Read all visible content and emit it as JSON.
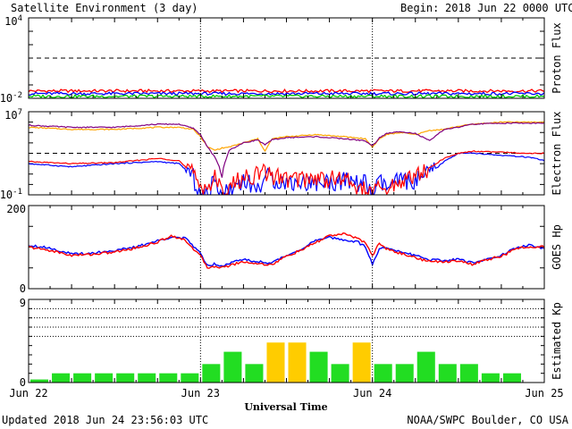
{
  "header": {
    "title": "Satellite Environment (3 day)",
    "begin_label": "Begin:",
    "begin_value": "2018 Jun 22 0000 UTC"
  },
  "footer": {
    "updated": "Updated 2018 Jun 24 23:56:03 UTC",
    "credit": "NOAA/SWPC Boulder, CO USA"
  },
  "chart_data": [
    {
      "type": "line",
      "panel": "proton",
      "ylabel": "Proton Flux",
      "ylim_exp": [
        -2,
        4
      ],
      "y_tick_labels": [
        {
          "base": "10",
          "exp": "4"
        },
        {
          "base": "10",
          "exp": "-2"
        }
      ],
      "scale": "log",
      "reference_line_exp": 1,
      "series": [
        {
          "color": "#ff0000",
          "level_exp": -1.45
        },
        {
          "color": "#0000ff",
          "level_exp": -1.65
        },
        {
          "color": "#00cc00",
          "level_exp": -1.85
        }
      ]
    },
    {
      "type": "line",
      "panel": "electron",
      "ylabel": "Electron Flux",
      "ylim_exp": [
        -1,
        7
      ],
      "y_tick_labels": [
        {
          "base": "10",
          "exp": "7"
        },
        {
          "base": "10",
          "exp": "-1"
        }
      ],
      "scale": "log",
      "reference_line_exp": 3,
      "x_hours": [
        0,
        6,
        12,
        18,
        21,
        22,
        23,
        24,
        25,
        26,
        27,
        28,
        30,
        32,
        33,
        34,
        36,
        40,
        44,
        47,
        48,
        49,
        50,
        52,
        54,
        56,
        58,
        60,
        62,
        66,
        70,
        72
      ],
      "series": [
        {
          "color": "#ffa500",
          "y_exp": [
            5.5,
            5.3,
            5.3,
            5.5,
            5.5,
            5.4,
            5.3,
            4.6,
            3.6,
            3.3,
            3.5,
            3.6,
            4.0,
            4.4,
            3.2,
            4.4,
            4.6,
            4.8,
            4.6,
            4.4,
            3.6,
            4.4,
            4.8,
            5.0,
            4.8,
            5.2,
            5.3,
            5.6,
            5.8,
            6.0,
            6.0,
            6.0
          ]
        },
        {
          "color": "#800080",
          "y_exp": [
            5.7,
            5.5,
            5.5,
            5.8,
            5.8,
            5.6,
            5.4,
            4.8,
            3.6,
            2.6,
            1.2,
            3.3,
            4.0,
            4.3,
            3.8,
            4.3,
            4.5,
            4.6,
            4.4,
            4.2,
            3.7,
            4.5,
            4.9,
            5.1,
            4.9,
            4.2,
            5.3,
            5.5,
            5.8,
            5.9,
            5.9,
            5.9
          ]
        },
        {
          "color": "#0000ff",
          "y_exp": [
            2.0,
            1.7,
            2.0,
            2.2,
            2.0,
            1.4,
            0.6,
            -1.0,
            -1.0,
            0.4,
            -1.0,
            -0.5,
            0.5,
            -0.5,
            0.8,
            0.5,
            0.2,
            0.2,
            0.3,
            0.1,
            -1.0,
            0.2,
            -0.3,
            0.4,
            0.3,
            1.0,
            2.2,
            3.0,
            3.0,
            2.8,
            2.6,
            2.3
          ]
        },
        {
          "color": "#ff0000",
          "y_exp": [
            2.2,
            2.0,
            2.1,
            2.5,
            2.3,
            1.6,
            0.9,
            0.0,
            -0.3,
            0.6,
            -0.8,
            -0.2,
            0.6,
            1.0,
            1.1,
            0.9,
            0.5,
            0.6,
            0.5,
            -0.6,
            -0.8,
            -0.4,
            -0.6,
            0.4,
            0.8,
            1.6,
            2.5,
            3.0,
            3.2,
            3.1,
            3.0,
            3.0
          ]
        }
      ]
    },
    {
      "type": "line",
      "panel": "goes_hp",
      "ylabel": "GOES Hp",
      "ylim": [
        0,
        200
      ],
      "y_tick_labels": [
        "200",
        "0"
      ],
      "x_hours": [
        0,
        3,
        6,
        9,
        12,
        15,
        18,
        20,
        22,
        24,
        25,
        26,
        27,
        28,
        30,
        32,
        34,
        36,
        38,
        40,
        42,
        44,
        46,
        47,
        48,
        49,
        50,
        52,
        54,
        56,
        58,
        60,
        62,
        64,
        66,
        68,
        70,
        72
      ],
      "series": [
        {
          "color": "#0000ff",
          "y": [
            105,
            98,
            83,
            86,
            92,
            100,
            115,
            125,
            120,
            85,
            55,
            60,
            55,
            62,
            70,
            65,
            62,
            80,
            95,
            115,
            123,
            118,
            112,
            100,
            60,
            95,
            100,
            88,
            80,
            70,
            68,
            70,
            62,
            72,
            80,
            98,
            105,
            95
          ]
        },
        {
          "color": "#ff0000",
          "y": [
            100,
            92,
            80,
            83,
            88,
            98,
            112,
            128,
            115,
            78,
            50,
            55,
            50,
            56,
            65,
            60,
            58,
            78,
            92,
            110,
            128,
            131,
            122,
            110,
            80,
            110,
            95,
            85,
            75,
            65,
            65,
            68,
            58,
            70,
            78,
            95,
            102,
            100
          ]
        }
      ]
    },
    {
      "type": "bar",
      "panel": "kp",
      "ylabel": "Estimated Kp",
      "ylim": [
        0,
        9
      ],
      "y_tick_labels": [
        "9",
        "0"
      ],
      "dotted_levels": [
        5,
        6,
        7,
        8,
        9
      ],
      "values": [
        0.33,
        1,
        1,
        1,
        1,
        1,
        1,
        1,
        2,
        3.33,
        2,
        4.33,
        4.33,
        3.33,
        2,
        4.33,
        2,
        2,
        3.33,
        2,
        2,
        1,
        1,
        0
      ],
      "colors": {
        "low": "#22dd22",
        "mid": "#ffcc00",
        "high": "#ff0000"
      }
    }
  ],
  "x_axis": {
    "label": "Universal Time",
    "ticks": [
      "Jun 22",
      "Jun 23",
      "Jun 24",
      "Jun 25"
    ],
    "day_divider_hours": [
      24,
      48
    ]
  }
}
